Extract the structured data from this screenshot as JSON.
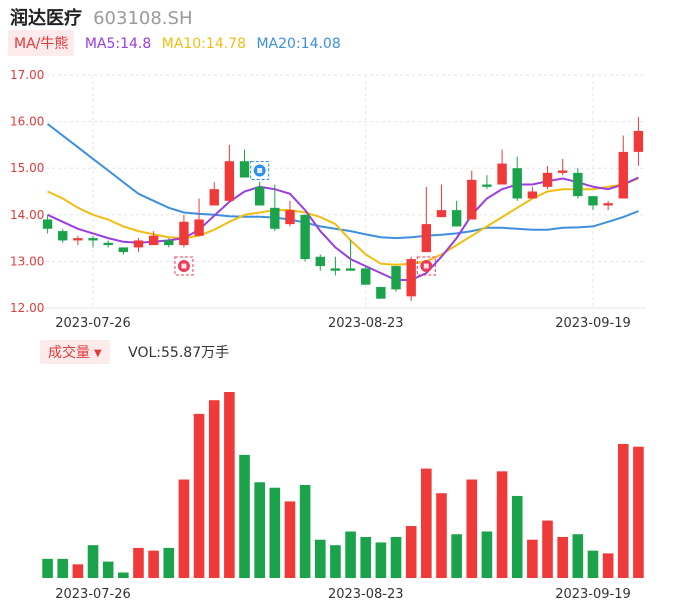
{
  "header": {
    "name": "润达医疗",
    "code": "603108.SH"
  },
  "ma_legend": {
    "badge": "MA/牛熊",
    "ma5": "MA5:14.8",
    "ma10": "MA10:14.78",
    "ma20": "MA20:14.08"
  },
  "volume_legend": {
    "badge": "成交量",
    "value": "VOL:55.87万手"
  },
  "colors": {
    "up": "#f03a3a",
    "down": "#1aa34a",
    "ma5": "#9b3de0",
    "ma10": "#f2bd13",
    "ma20": "#3d8fe0",
    "grid": "#e6e6e6",
    "axis_label": "#e23b3b"
  },
  "icons": {
    "sell_marker": "blue-marker-icon",
    "buy_marker": "red-marker-icon"
  },
  "chart_data": [
    {
      "type": "candlestick",
      "title": "",
      "ylim": [
        12.0,
        17.0
      ],
      "y_ticks": [
        "17.00",
        "16.00",
        "15.00",
        "14.00",
        "13.00",
        "12.00"
      ],
      "x_tick_labels": [
        "2023-07-26",
        "2023-08-23",
        "2023-09-19"
      ],
      "x_tick_indices": [
        3,
        21,
        36
      ],
      "grid": true,
      "candles": [
        {
          "o": 13.9,
          "h": 14.0,
          "l": 13.6,
          "c": 13.7
        },
        {
          "o": 13.65,
          "h": 13.7,
          "l": 13.4,
          "c": 13.45
        },
        {
          "o": 13.45,
          "h": 13.55,
          "l": 13.35,
          "c": 13.5
        },
        {
          "o": 13.5,
          "h": 13.55,
          "l": 13.3,
          "c": 13.45
        },
        {
          "o": 13.4,
          "h": 13.45,
          "l": 13.3,
          "c": 13.35
        },
        {
          "o": 13.3,
          "h": 13.3,
          "l": 13.15,
          "c": 13.2
        },
        {
          "o": 13.3,
          "h": 13.5,
          "l": 13.2,
          "c": 13.45
        },
        {
          "o": 13.35,
          "h": 13.65,
          "l": 13.35,
          "c": 13.55
        },
        {
          "o": 13.45,
          "h": 13.5,
          "l": 13.3,
          "c": 13.35
        },
        {
          "o": 13.35,
          "h": 14.0,
          "l": 13.3,
          "c": 13.85
        },
        {
          "o": 13.55,
          "h": 14.35,
          "l": 13.55,
          "c": 13.9
        },
        {
          "o": 14.2,
          "h": 14.7,
          "l": 14.2,
          "c": 14.55
        },
        {
          "o": 14.3,
          "h": 15.5,
          "l": 14.3,
          "c": 15.15
        },
        {
          "o": 15.15,
          "h": 15.4,
          "l": 14.8,
          "c": 14.8
        },
        {
          "o": 14.6,
          "h": 14.7,
          "l": 14.2,
          "c": 14.2
        },
        {
          "o": 14.15,
          "h": 14.65,
          "l": 13.65,
          "c": 13.7
        },
        {
          "o": 13.8,
          "h": 14.3,
          "l": 13.75,
          "c": 14.1
        },
        {
          "o": 14.0,
          "h": 14.0,
          "l": 13.0,
          "c": 13.05
        },
        {
          "o": 13.1,
          "h": 13.15,
          "l": 12.8,
          "c": 12.9
        },
        {
          "o": 12.85,
          "h": 13.1,
          "l": 12.7,
          "c": 12.8
        },
        {
          "o": 12.85,
          "h": 13.45,
          "l": 12.8,
          "c": 12.8
        },
        {
          "o": 12.85,
          "h": 12.9,
          "l": 12.5,
          "c": 12.5
        },
        {
          "o": 12.45,
          "h": 12.45,
          "l": 12.2,
          "c": 12.2
        },
        {
          "o": 12.9,
          "h": 12.9,
          "l": 12.35,
          "c": 12.4
        },
        {
          "o": 12.25,
          "h": 13.1,
          "l": 12.15,
          "c": 13.05
        },
        {
          "o": 13.2,
          "h": 14.6,
          "l": 13.2,
          "c": 13.8
        },
        {
          "o": 13.95,
          "h": 14.65,
          "l": 13.95,
          "c": 14.1
        },
        {
          "o": 14.1,
          "h": 14.3,
          "l": 13.75,
          "c": 13.75
        },
        {
          "o": 13.9,
          "h": 14.95,
          "l": 13.9,
          "c": 14.75
        },
        {
          "o": 14.65,
          "h": 14.85,
          "l": 14.55,
          "c": 14.6
        },
        {
          "o": 14.65,
          "h": 15.4,
          "l": 14.65,
          "c": 15.1
        },
        {
          "o": 15.0,
          "h": 15.25,
          "l": 14.3,
          "c": 14.35
        },
        {
          "o": 14.35,
          "h": 14.6,
          "l": 14.35,
          "c": 14.5
        },
        {
          "o": 14.6,
          "h": 15.05,
          "l": 14.55,
          "c": 14.9
        },
        {
          "o": 14.9,
          "h": 15.2,
          "l": 14.85,
          "c": 14.95
        },
        {
          "o": 14.9,
          "h": 15.0,
          "l": 14.35,
          "c": 14.4
        },
        {
          "o": 14.4,
          "h": 14.4,
          "l": 14.1,
          "c": 14.2
        },
        {
          "o": 14.2,
          "h": 14.3,
          "l": 14.1,
          "c": 14.25
        },
        {
          "o": 14.35,
          "h": 15.7,
          "l": 14.35,
          "c": 15.35
        },
        {
          "o": 15.35,
          "h": 16.1,
          "l": 15.05,
          "c": 15.8
        }
      ],
      "ma5": [
        14.0,
        13.85,
        13.7,
        13.6,
        13.5,
        13.42,
        13.4,
        13.42,
        13.45,
        13.5,
        13.68,
        13.98,
        14.28,
        14.5,
        14.6,
        14.55,
        14.45,
        14.1,
        13.65,
        13.3,
        13.05,
        12.9,
        12.75,
        12.6,
        12.6,
        12.75,
        13.1,
        13.5,
        14.0,
        14.35,
        14.55,
        14.65,
        14.65,
        14.72,
        14.78,
        14.7,
        14.6,
        14.55,
        14.65,
        14.8
      ],
      "ma10": [
        14.5,
        14.35,
        14.15,
        14.0,
        13.9,
        13.75,
        13.65,
        13.58,
        13.52,
        13.5,
        13.55,
        13.68,
        13.85,
        14.0,
        14.05,
        14.1,
        14.1,
        14.05,
        13.95,
        13.8,
        13.45,
        13.15,
        12.95,
        12.93,
        12.95,
        13.0,
        13.15,
        13.35,
        13.55,
        13.75,
        13.95,
        14.15,
        14.35,
        14.5,
        14.55,
        14.55,
        14.55,
        14.6,
        14.65,
        14.78
      ],
      "ma20": [
        15.95,
        15.7,
        15.45,
        15.2,
        14.95,
        14.7,
        14.45,
        14.3,
        14.15,
        14.05,
        14.02,
        14.0,
        13.97,
        13.96,
        13.96,
        13.94,
        13.9,
        13.83,
        13.75,
        13.7,
        13.65,
        13.58,
        13.52,
        13.5,
        13.52,
        13.55,
        13.57,
        13.6,
        13.65,
        13.72,
        13.72,
        13.7,
        13.68,
        13.68,
        13.72,
        13.73,
        13.75,
        13.85,
        13.95,
        14.08
      ]
    },
    {
      "type": "bar",
      "title": "",
      "values": [
        7,
        7,
        5,
        12,
        6,
        2,
        11,
        10,
        11,
        36,
        60,
        65,
        68,
        45,
        35,
        33,
        28,
        34,
        14,
        12,
        17,
        15,
        13,
        15,
        19,
        40,
        31,
        16,
        36,
        17,
        39,
        30,
        14,
        21,
        15,
        16,
        10,
        9,
        49,
        48
      ],
      "directions": [
        "down",
        "down",
        "up",
        "down",
        "down",
        "down",
        "up",
        "up",
        "down",
        "up",
        "up",
        "up",
        "up",
        "down",
        "down",
        "down",
        "up",
        "down",
        "down",
        "down",
        "down",
        "down",
        "down",
        "down",
        "up",
        "up",
        "up",
        "down",
        "up",
        "down",
        "up",
        "down",
        "up",
        "up",
        "up",
        "down",
        "down",
        "up",
        "up",
        "up"
      ],
      "x_tick_labels": [
        "2023-07-26",
        "2023-08-23",
        "2023-09-19"
      ],
      "x_tick_indices": [
        3,
        21,
        36
      ]
    }
  ],
  "markers": [
    {
      "index": 14,
      "kind": "sell",
      "price": 14.95
    },
    {
      "index": 9,
      "kind": "buy",
      "price": 12.9
    },
    {
      "index": 25,
      "kind": "buy",
      "price": 12.9
    }
  ]
}
